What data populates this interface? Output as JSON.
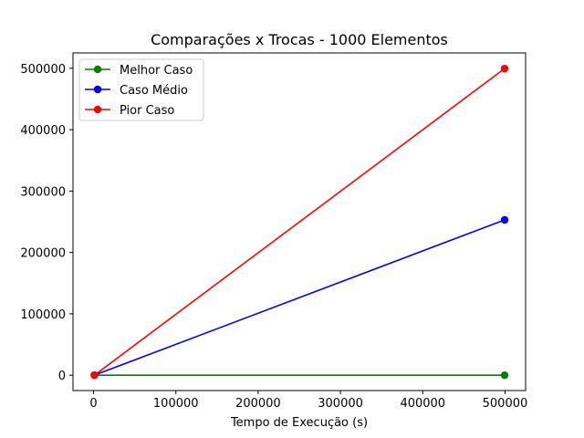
{
  "chart_data": {
    "type": "line",
    "title": "Comparações x Trocas - 1000 Elementos",
    "xlabel": "Tempo de Execução (s)",
    "ylabel": "",
    "xlim": [
      -25000,
      525000
    ],
    "ylim": [
      -25000,
      525000
    ],
    "xticks": [
      0,
      100000,
      200000,
      300000,
      400000,
      500000
    ],
    "yticks": [
      0,
      100000,
      200000,
      300000,
      400000,
      500000
    ],
    "xtick_labels": [
      "0",
      "100000",
      "200000",
      "300000",
      "400000",
      "500000"
    ],
    "ytick_labels": [
      "0",
      "100000",
      "200000",
      "300000",
      "400000",
      "500000"
    ],
    "grid": false,
    "legend_position": "top-left",
    "series": [
      {
        "name": "Melhor Caso",
        "color": "#008000",
        "x": [
          999,
          499500
        ],
        "y": [
          0,
          0
        ]
      },
      {
        "name": "Caso Médio",
        "color": "#0000ff",
        "x": [
          999,
          499500
        ],
        "y": [
          0,
          253000
        ]
      },
      {
        "name": "Pior Caso",
        "color": "#ff0000",
        "x": [
          999,
          499500
        ],
        "y": [
          0,
          499500
        ]
      }
    ]
  }
}
